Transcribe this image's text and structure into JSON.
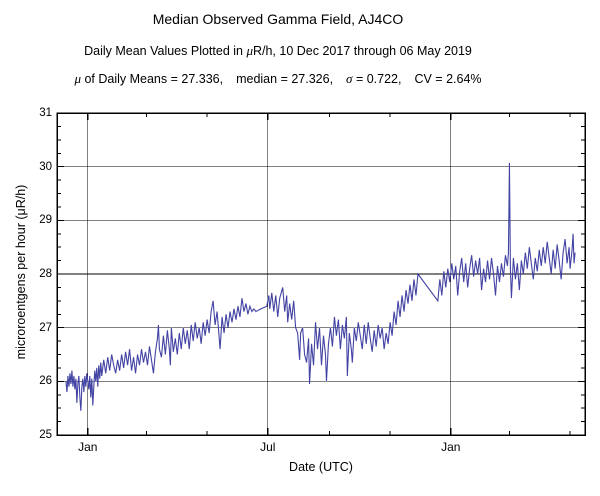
{
  "header": {
    "title": "Median Observed Gamma Field, AJ4CO",
    "subtitle": {
      "pre": "Daily Mean Values Plotted in ",
      "mu": "μ",
      "post": "R/h, 10 Dec 2017 through 06 May 2019"
    },
    "stats": {
      "mu": "μ",
      "part1": " of Daily Means = 27.336,",
      "part2": "median = 27.326,",
      "sigma": "σ",
      "part3": " = 0.722,",
      "part4": "CV = 2.64%"
    }
  },
  "chart_data": {
    "type": "line",
    "title": "Median Observed Gamma Field, AJ4CO",
    "subtitle": "Daily Mean Values Plotted in μR/h, 10 Dec 2017 through 06 May 2019",
    "stats_line": "μ of Daily Means = 27.336,  median = 27.326,  σ = 0.722,  CV = 2.64%",
    "xlabel": "Date (UTC)",
    "ylabel": "microroentgens per hour (μR/h)",
    "line_color": "#4343a4",
    "grid": true,
    "x_axis": {
      "start_date": "2017-12-01",
      "end_date": "2019-05-16",
      "axis_days": 531,
      "major_ticks": [
        {
          "day": 31,
          "label": "Jan"
        },
        {
          "day": 212,
          "label": "Jul"
        },
        {
          "day": 396,
          "label": "Jan"
        }
      ],
      "minor_tick_days": [
        90,
        151,
        274,
        335,
        455,
        516
      ]
    },
    "y_axis": {
      "min": 25,
      "max": 31,
      "major_step": 1,
      "minor_step": 0.25,
      "tick_values": [
        25,
        26,
        27,
        28,
        29,
        30,
        31
      ],
      "tick_labels": [
        "25",
        "26",
        "27",
        "28",
        "29",
        "30",
        "31"
      ]
    },
    "series": [
      {
        "name": "daily-mean-gamma",
        "start_date": "2017-12-10",
        "start_axis_day": 9,
        "points": [
          [
            0,
            26.0
          ],
          [
            1,
            25.8
          ],
          [
            2,
            26.1
          ],
          [
            3,
            25.9
          ],
          [
            4,
            26.15
          ],
          [
            5,
            25.95
          ],
          [
            6,
            26.2
          ],
          [
            7,
            25.9
          ],
          [
            8,
            26.1
          ],
          [
            9,
            25.85
          ],
          [
            10,
            26.05
          ],
          [
            11,
            25.6
          ],
          [
            12,
            25.95
          ],
          [
            13,
            26.1
          ],
          [
            14,
            25.7
          ],
          [
            15,
            25.45
          ],
          [
            16,
            25.9
          ],
          [
            17,
            26.05
          ],
          [
            18,
            25.8
          ],
          [
            19,
            26.1
          ],
          [
            20,
            25.9
          ],
          [
            21,
            26.15
          ],
          [
            22,
            26.0
          ],
          [
            23,
            25.85
          ],
          [
            24,
            26.1
          ],
          [
            25,
            25.7
          ],
          [
            26,
            26.05
          ],
          [
            27,
            25.55
          ],
          [
            28,
            25.9
          ],
          [
            29,
            26.2
          ],
          [
            30,
            26.0
          ],
          [
            31,
            26.25
          ],
          [
            32,
            25.9
          ],
          [
            33,
            26.3
          ],
          [
            34,
            26.05
          ],
          [
            35,
            26.35
          ],
          [
            36,
            26.1
          ],
          [
            38,
            26.4
          ],
          [
            40,
            26.15
          ],
          [
            42,
            26.45
          ],
          [
            44,
            26.2
          ],
          [
            46,
            26.5
          ],
          [
            48,
            26.3
          ],
          [
            50,
            26.15
          ],
          [
            52,
            26.4
          ],
          [
            54,
            26.2
          ],
          [
            56,
            26.5
          ],
          [
            58,
            26.25
          ],
          [
            60,
            26.55
          ],
          [
            62,
            26.3
          ],
          [
            64,
            26.6
          ],
          [
            66,
            26.2
          ],
          [
            68,
            26.45
          ],
          [
            70,
            26.15
          ],
          [
            72,
            26.5
          ],
          [
            74,
            26.3
          ],
          [
            76,
            26.6
          ],
          [
            78,
            26.35
          ],
          [
            80,
            26.55
          ],
          [
            82,
            26.3
          ],
          [
            84,
            26.65
          ],
          [
            86,
            26.4
          ],
          [
            88,
            26.15
          ],
          [
            90,
            26.55
          ],
          [
            92,
            26.8
          ],
          [
            93,
            27.05
          ],
          [
            94,
            26.6
          ],
          [
            96,
            26.45
          ],
          [
            98,
            26.85
          ],
          [
            100,
            26.5
          ],
          [
            102,
            26.95
          ],
          [
            104,
            26.6
          ],
          [
            105,
            26.3
          ],
          [
            106,
            27.0
          ],
          [
            108,
            26.55
          ],
          [
            110,
            26.8
          ],
          [
            112,
            26.5
          ],
          [
            114,
            26.9
          ],
          [
            116,
            26.6
          ],
          [
            118,
            27.0
          ],
          [
            120,
            26.7
          ],
          [
            122,
            26.95
          ],
          [
            124,
            26.6
          ],
          [
            126,
            27.05
          ],
          [
            128,
            26.75
          ],
          [
            130,
            27.1
          ],
          [
            132,
            26.8
          ],
          [
            134,
            27.0
          ],
          [
            136,
            26.7
          ],
          [
            138,
            27.1
          ],
          [
            140,
            26.85
          ],
          [
            142,
            27.15
          ],
          [
            144,
            26.9
          ],
          [
            146,
            27.3
          ],
          [
            148,
            27.5
          ],
          [
            150,
            27.05
          ],
          [
            152,
            27.3
          ],
          [
            155,
            26.6
          ],
          [
            157,
            27.2
          ],
          [
            159,
            26.9
          ],
          [
            161,
            27.25
          ],
          [
            163,
            27.0
          ],
          [
            165,
            27.3
          ],
          [
            167,
            27.1
          ],
          [
            169,
            27.35
          ],
          [
            171,
            27.15
          ],
          [
            173,
            27.4
          ],
          [
            175,
            27.2
          ],
          [
            177,
            27.55
          ],
          [
            179,
            27.3
          ],
          [
            181,
            27.45
          ],
          [
            183,
            27.25
          ],
          [
            185,
            27.4
          ],
          [
            187,
            27.3
          ],
          [
            189,
            27.35
          ],
          [
            191,
            27.3
          ],
          [
            196,
            27.35
          ],
          [
            202,
            27.4
          ],
          [
            204,
            27.6
          ],
          [
            205,
            27.35
          ],
          [
            207,
            27.65
          ],
          [
            209,
            27.3
          ],
          [
            211,
            27.6
          ],
          [
            213,
            27.2
          ],
          [
            215,
            27.55
          ],
          [
            218,
            27.75
          ],
          [
            220,
            27.3
          ],
          [
            222,
            27.6
          ],
          [
            223,
            27.1
          ],
          [
            225,
            27.45
          ],
          [
            227,
            27.15
          ],
          [
            229,
            27.5
          ],
          [
            231,
            27.0
          ],
          [
            233,
            26.9
          ],
          [
            235,
            26.4
          ],
          [
            236,
            26.9
          ],
          [
            238,
            27.0
          ],
          [
            240,
            26.5
          ],
          [
            242,
            26.35
          ],
          [
            244,
            26.8
          ],
          [
            245,
            25.95
          ],
          [
            247,
            26.7
          ],
          [
            249,
            26.3
          ],
          [
            251,
            27.1
          ],
          [
            253,
            26.6
          ],
          [
            255,
            27.0
          ],
          [
            257,
            26.3
          ],
          [
            259,
            26.85
          ],
          [
            261,
            26.5
          ],
          [
            262,
            26.0
          ],
          [
            264,
            26.7
          ],
          [
            266,
            27.0
          ],
          [
            268,
            26.65
          ],
          [
            270,
            27.2
          ],
          [
            272,
            26.85
          ],
          [
            274,
            27.15
          ],
          [
            276,
            26.6
          ],
          [
            278,
            27.05
          ],
          [
            280,
            26.8
          ],
          [
            282,
            27.2
          ],
          [
            283,
            26.1
          ],
          [
            285,
            26.9
          ],
          [
            287,
            26.6
          ],
          [
            288,
            26.35
          ],
          [
            290,
            27.0
          ],
          [
            292,
            26.75
          ],
          [
            294,
            27.1
          ],
          [
            296,
            26.85
          ],
          [
            298,
            26.6
          ],
          [
            300,
            27.05
          ],
          [
            302,
            26.7
          ],
          [
            304,
            27.1
          ],
          [
            306,
            26.8
          ],
          [
            308,
            26.55
          ],
          [
            310,
            26.95
          ],
          [
            312,
            26.65
          ],
          [
            314,
            27.05
          ],
          [
            316,
            26.8
          ],
          [
            318,
            27.0
          ],
          [
            320,
            26.6
          ],
          [
            322,
            26.9
          ],
          [
            324,
            26.7
          ],
          [
            326,
            27.1
          ],
          [
            328,
            26.85
          ],
          [
            330,
            27.3
          ],
          [
            332,
            27.05
          ],
          [
            334,
            27.5
          ],
          [
            336,
            27.2
          ],
          [
            338,
            27.6
          ],
          [
            340,
            27.3
          ],
          [
            342,
            27.7
          ],
          [
            344,
            27.45
          ],
          [
            346,
            27.8
          ],
          [
            348,
            27.5
          ],
          [
            350,
            27.9
          ],
          [
            352,
            27.6
          ],
          [
            354,
            28.0
          ],
          [
            374,
            27.5
          ],
          [
            376,
            27.9
          ],
          [
            378,
            27.6
          ],
          [
            380,
            28.05
          ],
          [
            382,
            27.75
          ],
          [
            384,
            28.1
          ],
          [
            386,
            27.85
          ],
          [
            388,
            28.2
          ],
          [
            390,
            27.9
          ],
          [
            392,
            28.15
          ],
          [
            394,
            27.6
          ],
          [
            396,
            28.05
          ],
          [
            398,
            28.3
          ],
          [
            400,
            27.85
          ],
          [
            402,
            28.2
          ],
          [
            404,
            27.75
          ],
          [
            406,
            28.1
          ],
          [
            408,
            28.35
          ],
          [
            410,
            27.95
          ],
          [
            412,
            28.25
          ],
          [
            414,
            28.0
          ],
          [
            416,
            28.3
          ],
          [
            418,
            27.7
          ],
          [
            420,
            28.1
          ],
          [
            422,
            27.85
          ],
          [
            424,
            28.25
          ],
          [
            426,
            27.9
          ],
          [
            428,
            28.3
          ],
          [
            430,
            28.0
          ],
          [
            432,
            27.6
          ],
          [
            434,
            28.15
          ],
          [
            436,
            27.85
          ],
          [
            438,
            28.2
          ],
          [
            440,
            27.95
          ],
          [
            442,
            28.35
          ],
          [
            444,
            28.15
          ],
          [
            445,
            28.4
          ],
          [
            446,
            30.07
          ],
          [
            447,
            28.1
          ],
          [
            448,
            27.55
          ],
          [
            450,
            28.3
          ],
          [
            452,
            27.9
          ],
          [
            454,
            28.2
          ],
          [
            456,
            27.7
          ],
          [
            458,
            28.25
          ],
          [
            460,
            28.0
          ],
          [
            462,
            28.4
          ],
          [
            464,
            28.1
          ],
          [
            466,
            28.5
          ],
          [
            468,
            28.2
          ],
          [
            470,
            27.9
          ],
          [
            472,
            28.3
          ],
          [
            474,
            28.05
          ],
          [
            476,
            28.45
          ],
          [
            478,
            28.15
          ],
          [
            480,
            28.5
          ],
          [
            482,
            28.2
          ],
          [
            484,
            28.6
          ],
          [
            486,
            28.3
          ],
          [
            488,
            28.0
          ],
          [
            490,
            28.45
          ],
          [
            492,
            28.1
          ],
          [
            494,
            28.55
          ],
          [
            496,
            28.25
          ],
          [
            498,
            27.9
          ],
          [
            500,
            28.4
          ],
          [
            502,
            28.65
          ],
          [
            504,
            28.2
          ],
          [
            506,
            28.5
          ],
          [
            507,
            28.1
          ],
          [
            509,
            28.45
          ],
          [
            510,
            28.75
          ],
          [
            511,
            28.2
          ],
          [
            512,
            28.4
          ]
        ]
      }
    ]
  }
}
